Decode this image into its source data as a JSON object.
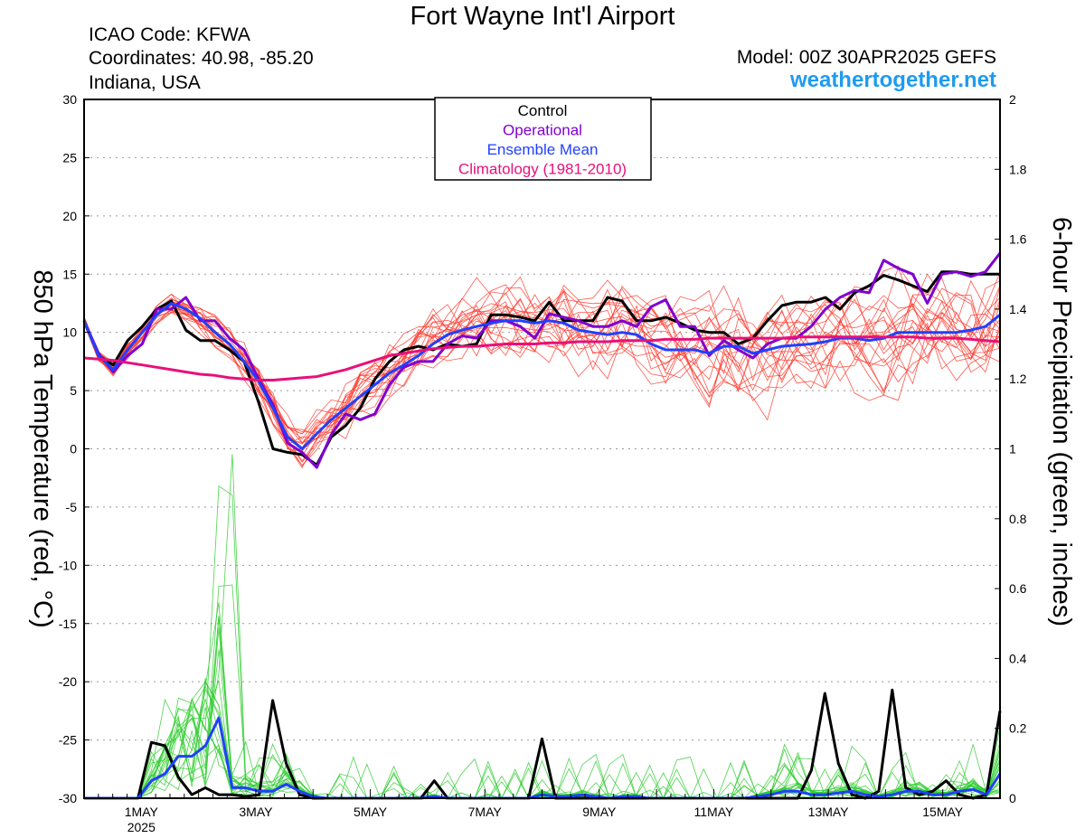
{
  "header": {
    "title": "Fort Wayne Int'l Airport",
    "icao": "ICAO Code: KFWA",
    "coords": "Coordinates: 40.98, -85.20",
    "region": "Indiana, USA",
    "model": "Model: 00Z 30APR2025 GEFS",
    "site": "weathertogether.net"
  },
  "colors": {
    "control": "#000000",
    "operational": "#8000d0",
    "mean": "#2040ff",
    "climatology": "#e8107a",
    "members_temp": "#ff3b2f",
    "members_precip": "#2ecc2e",
    "site": "#1e9bf0"
  },
  "chart_data": {
    "type": "line",
    "ylabel": "850 hPa Temperature (red, °C)",
    "y2label": "6-hour Precipitation (green, inches)",
    "ylim": [
      -30,
      30
    ],
    "y2lim": [
      0,
      2
    ],
    "yticks": [
      30,
      25,
      20,
      15,
      10,
      5,
      0,
      -5,
      -10,
      -15,
      -20,
      -25,
      -30
    ],
    "y2ticks": [
      "2",
      "1.8",
      "1.6",
      "1.4",
      "1.2",
      "1",
      "0.8",
      "0.6",
      "0.4",
      "0.2",
      "0"
    ],
    "x_start_day": 30,
    "x_end_day": 46,
    "x_ticks": [
      {
        "day": 31,
        "label": "1MAY",
        "sub": "2025"
      },
      {
        "day": 33,
        "label": "3MAY",
        "sub": ""
      },
      {
        "day": 35,
        "label": "5MAY",
        "sub": ""
      },
      {
        "day": 37,
        "label": "7MAY",
        "sub": ""
      },
      {
        "day": 39,
        "label": "9MAY",
        "sub": ""
      },
      {
        "day": 41,
        "label": "11MAY",
        "sub": ""
      },
      {
        "day": 43,
        "label": "13MAY",
        "sub": ""
      },
      {
        "day": 45,
        "label": "15MAY",
        "sub": ""
      }
    ],
    "legend": [
      "Control",
      "Operational",
      "Ensemble Mean",
      "Climatology (1981-2010)"
    ],
    "legend_position": "top-center",
    "grid": "horizontal dotted",
    "series": [
      {
        "key": "control",
        "axis": "temp",
        "values": [
          11.0,
          8.0,
          7.2,
          9.3,
          10.5,
          12.0,
          12.7,
          10.2,
          9.3,
          9.3,
          8.5,
          7.5,
          4.0,
          0.0,
          -0.3,
          -0.5,
          -1.4,
          1.0,
          2.0,
          3.5,
          6.0,
          7.5,
          8.5,
          8.8,
          8.5,
          9.0,
          8.8,
          9.0,
          11.5,
          11.5,
          11.3,
          11.0,
          12.6,
          11.0,
          11.0,
          11.0,
          13.0,
          12.7,
          11.0,
          11.0,
          11.3,
          10.8,
          10.2,
          10.0,
          10.0,
          9.0,
          9.5,
          11.0,
          12.3,
          12.6,
          12.6,
          13.0,
          12.0,
          13.4,
          14.0,
          14.9,
          14.5,
          14.0,
          13.5,
          15.2,
          15.2,
          15.0,
          15.0,
          15.0
        ]
      },
      {
        "key": "operational",
        "axis": "temp",
        "values": [
          11.0,
          8.2,
          6.6,
          8.0,
          9.0,
          12.0,
          12.0,
          13.0,
          11.0,
          11.0,
          9.5,
          8.5,
          6.0,
          3.8,
          0.5,
          -0.3,
          -1.6,
          1.2,
          3.0,
          2.5,
          3.0,
          5.5,
          7.0,
          7.5,
          7.5,
          9.0,
          9.7,
          9.5,
          11.0,
          11.0,
          10.5,
          9.5,
          11.6,
          11.3,
          11.0,
          10.5,
          10.5,
          11.0,
          10.5,
          12.2,
          12.8,
          10.5,
          10.5,
          8.0,
          9.3,
          8.5,
          7.8,
          9.0,
          9.5,
          9.5,
          10.5,
          12.0,
          13.0,
          13.6,
          13.4,
          16.2,
          15.5,
          15.0,
          12.5,
          15.0,
          15.2,
          14.8,
          15.2,
          16.8
        ]
      },
      {
        "key": "mean",
        "axis": "temp",
        "values": [
          11.0,
          8.0,
          6.8,
          8.5,
          10.0,
          11.5,
          12.5,
          12.0,
          11.2,
          10.0,
          9.0,
          7.5,
          5.8,
          3.5,
          1.0,
          0.0,
          1.3,
          2.5,
          3.5,
          4.5,
          5.5,
          6.5,
          7.2,
          8.0,
          9.0,
          9.8,
          10.2,
          10.5,
          10.8,
          11.0,
          11.0,
          10.8,
          11.0,
          10.8,
          10.2,
          10.0,
          9.8,
          10.0,
          9.8,
          9.0,
          8.5,
          8.5,
          8.5,
          8.2,
          8.8,
          8.8,
          8.2,
          8.5,
          8.8,
          8.9,
          9.0,
          9.2,
          9.5,
          9.5,
          9.3,
          9.5,
          10.0,
          10.0,
          10.0,
          10.0,
          10.0,
          10.2,
          10.5,
          11.5
        ]
      },
      {
        "key": "climatology",
        "axis": "temp",
        "values": [
          7.8,
          7.7,
          7.6,
          7.4,
          7.2,
          7.0,
          6.8,
          6.6,
          6.4,
          6.3,
          6.1,
          6.0,
          5.9,
          5.9,
          6.0,
          6.1,
          6.2,
          6.5,
          6.8,
          7.2,
          7.6,
          8.0,
          8.2,
          8.4,
          8.6,
          8.7,
          8.8,
          8.8,
          8.9,
          9.0,
          9.0,
          9.0,
          9.1,
          9.1,
          9.2,
          9.2,
          9.2,
          9.3,
          9.3,
          9.3,
          9.4,
          9.4,
          9.4,
          9.5,
          9.5,
          9.5,
          9.5,
          9.5,
          9.5,
          9.6,
          9.6,
          9.6,
          9.6,
          9.6,
          9.6,
          9.6,
          9.6,
          9.6,
          9.5,
          9.5,
          9.5,
          9.4,
          9.3,
          9.2
        ]
      },
      {
        "key": "control",
        "axis": "precip",
        "values": [
          0,
          0,
          0,
          0,
          0,
          0.16,
          0.15,
          0.06,
          0.01,
          0.03,
          0.01,
          0.01,
          0.005,
          0.01,
          0.28,
          0.1,
          0.01,
          0,
          0,
          0,
          0,
          0,
          0,
          0,
          0,
          0,
          0.05,
          0,
          0,
          0,
          0,
          0,
          0,
          0,
          0.17,
          0,
          0,
          0,
          0,
          0,
          0,
          0,
          0,
          0,
          0,
          0,
          0,
          0,
          0,
          0,
          0,
          0,
          0,
          0,
          0.08,
          0.3,
          0.1,
          0.01,
          0,
          0.02,
          0.31,
          0.03,
          0.01,
          0.02,
          0.05,
          0.01,
          0,
          0.01,
          0.25
        ]
      },
      {
        "key": "mean",
        "axis": "precip",
        "values": [
          0,
          0,
          0,
          0,
          0,
          0.05,
          0.07,
          0.12,
          0.12,
          0.15,
          0.23,
          0.03,
          0.03,
          0.02,
          0.02,
          0.04,
          0.02,
          0.005,
          0,
          0,
          0,
          0,
          0,
          0,
          0,
          0,
          0.005,
          0,
          0,
          0,
          0,
          0,
          0,
          0,
          0.01,
          0.005,
          0.005,
          0.01,
          0.005,
          0,
          0.005,
          0.005,
          0,
          0,
          0,
          0,
          0,
          0,
          0,
          0,
          0.005,
          0.01,
          0.02,
          0.02,
          0.01,
          0.01,
          0.015,
          0.02,
          0.01,
          0.005,
          0.01,
          0.02,
          0.02,
          0.01,
          0.01,
          0.02,
          0.025,
          0.01,
          0.07
        ]
      }
    ],
    "members_temp_count": 20,
    "members_precip_count": 20
  }
}
